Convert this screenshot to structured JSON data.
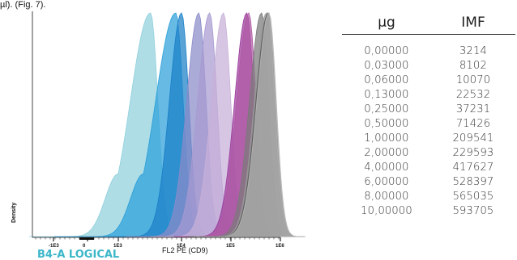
{
  "caption_fragment": "µl). (Fig. 7).",
  "chart_data": {
    "type": "area",
    "chart_kind": "flow cytometry overlay histogram",
    "ylabel": "Density",
    "xlabel": "FL2 PE (CD9)",
    "channel_label": "B4-A LOGICAL",
    "x_scale": "logicle",
    "x_ticks": [
      "-1E3",
      "0",
      "1E3",
      "1E4",
      "1E5",
      "1E6"
    ],
    "grid": false,
    "series": [
      {
        "peak_log10": 3.51,
        "color": "#8fd0dd"
      },
      {
        "peak_log10": 3.91,
        "color": "#2b9fd9"
      },
      {
        "peak_log10": 4.0,
        "color": "#1b7fc7"
      },
      {
        "peak_log10": 4.35,
        "color": "#8a8bc9"
      },
      {
        "peak_log10": 4.57,
        "color": "#a79ad1"
      },
      {
        "peak_log10": 4.85,
        "color": "#c7b0d8"
      },
      {
        "peak_log10": 5.32,
        "color": "#9b3a9b"
      },
      {
        "peak_log10": 5.36,
        "color": "#b05aa5"
      },
      {
        "peak_log10": 5.62,
        "color": "#7a7a7a"
      },
      {
        "peak_log10": 5.72,
        "color": "#9a9a9a"
      },
      {
        "peak_log10": 5.75,
        "color": "#5f5f5f"
      },
      {
        "peak_log10": 5.77,
        "color": "#b5b5b5"
      }
    ]
  },
  "table": {
    "headers": {
      "ug": "µg",
      "imf": "IMF"
    },
    "rows": [
      {
        "ug": "0,00000",
        "imf": "3214"
      },
      {
        "ug": "0,03000",
        "imf": "8102"
      },
      {
        "ug": "0,06000",
        "imf": "10070"
      },
      {
        "ug": "0,13000",
        "imf": "22532"
      },
      {
        "ug": "0,25000",
        "imf": "37231"
      },
      {
        "ug": "0,50000",
        "imf": "71426"
      },
      {
        "ug": "1,00000",
        "imf": "209541"
      },
      {
        "ug": "2,00000",
        "imf": "229593"
      },
      {
        "ug": "4,00000",
        "imf": "417627"
      },
      {
        "ug": "6,00000",
        "imf": "528397"
      },
      {
        "ug": "8,00000",
        "imf": "565035"
      },
      {
        "ug": "10,00000",
        "imf": "593705"
      }
    ]
  }
}
